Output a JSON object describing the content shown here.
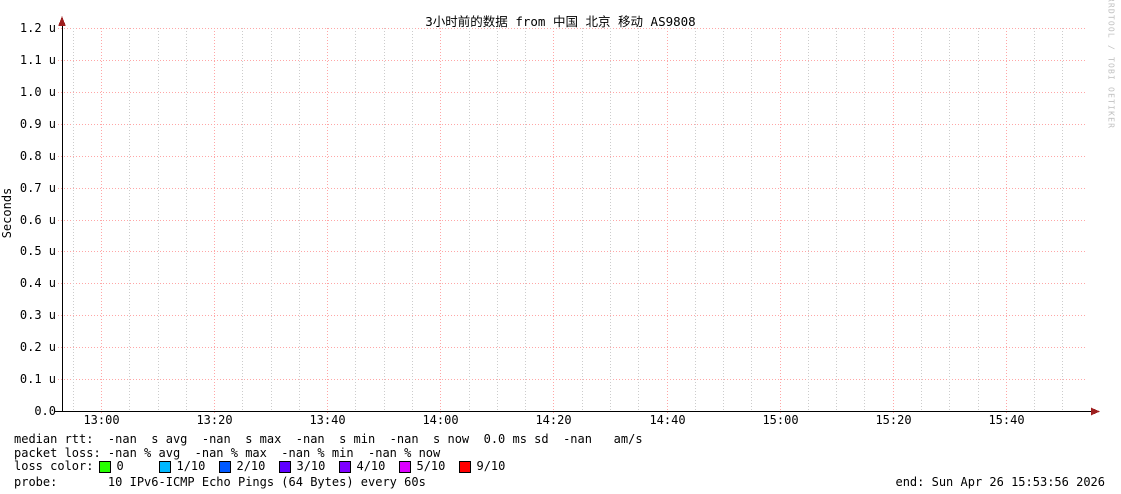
{
  "title": "3小时前的数据 from 中国 北京 移动 AS9808",
  "watermark": "RRDTOOL / TOBI OETIKER",
  "y_axis": {
    "label": "Seconds",
    "tick_labels": [
      "1.2 u",
      "1.1 u",
      "1.0 u",
      "0.9 u",
      "0.8 u",
      "0.7 u",
      "0.6 u",
      "0.5 u",
      "0.4 u",
      "0.3 u",
      "0.2 u",
      "0.1 u",
      "0.0"
    ]
  },
  "x_axis": {
    "tick_labels": [
      "13:00",
      "13:20",
      "13:40",
      "14:00",
      "14:20",
      "14:40",
      "15:00",
      "15:20",
      "15:40"
    ]
  },
  "legend": {
    "median_rtt": "median rtt:  -nan  s avg  -nan  s max  -nan  s min  -nan  s now  0.0 ms sd  -nan   am/s",
    "packet_loss": "packet loss: -nan % avg  -nan % max  -nan % min  -nan % now",
    "loss_color_label": "loss color:",
    "loss_levels": [
      {
        "label": "0",
        "color": "#26ff00"
      },
      {
        "label": "1/10",
        "color": "#00b8ff"
      },
      {
        "label": "2/10",
        "color": "#0059ff"
      },
      {
        "label": "3/10",
        "color": "#5e00ff"
      },
      {
        "label": "4/10",
        "color": "#7e00ff"
      },
      {
        "label": "5/10",
        "color": "#dd00ff"
      },
      {
        "label": "9/10",
        "color": "#ff0000"
      }
    ],
    "probe_line": "probe:       10 IPv6-ICMP Echo Pings (64 Bytes) every 60s",
    "end_text": "end: Sun Apr 26 15:53:56 2026"
  },
  "colors": {
    "grid_major": "#ffa6a6",
    "grid_minor": "#cccccc",
    "axis": "#000000",
    "arrow": "#9e1f1f"
  },
  "chart_data": {
    "type": "line",
    "title": "3小时前的数据 from 中国 北京 移动 AS9808",
    "xlabel": "",
    "ylabel": "Seconds",
    "ylim": [
      0,
      1.2e-06
    ],
    "y_tick_labels": [
      "0.0",
      "0.1 u",
      "0.2 u",
      "0.3 u",
      "0.4 u",
      "0.5 u",
      "0.6 u",
      "0.7 u",
      "0.8 u",
      "0.9 u",
      "1.0 u",
      "1.1 u",
      "1.2 u"
    ],
    "x_major_ticks": [
      "13:00",
      "13:20",
      "13:40",
      "14:00",
      "14:20",
      "14:40",
      "15:00",
      "15:20",
      "15:40"
    ],
    "x_minor_tick_interval_minutes": 5,
    "time_window_hours": 3,
    "end_time": "Sun Apr 26 15:53:56 2026",
    "grid": true,
    "legend_position": "bottom",
    "series": [
      {
        "name": "median rtt",
        "values": [],
        "stats": {
          "avg": "-nan s",
          "max": "-nan s",
          "min": "-nan s",
          "now": "-nan s",
          "sd": "0.0 ms",
          "am_per_s": "-nan"
        }
      },
      {
        "name": "packet loss",
        "values": [],
        "stats": {
          "avg": "-nan %",
          "max": "-nan %",
          "min": "-nan %",
          "now": "-nan %"
        }
      }
    ],
    "loss_color_scale": [
      {
        "loss": "0",
        "color": "#26ff00"
      },
      {
        "loss": "1/10",
        "color": "#00b8ff"
      },
      {
        "loss": "2/10",
        "color": "#0059ff"
      },
      {
        "loss": "3/10",
        "color": "#5e00ff"
      },
      {
        "loss": "4/10",
        "color": "#7e00ff"
      },
      {
        "loss": "5/10",
        "color": "#dd00ff"
      },
      {
        "loss": "9/10",
        "color": "#ff0000"
      }
    ],
    "probe": "10 IPv6-ICMP Echo Pings (64 Bytes) every 60s"
  }
}
